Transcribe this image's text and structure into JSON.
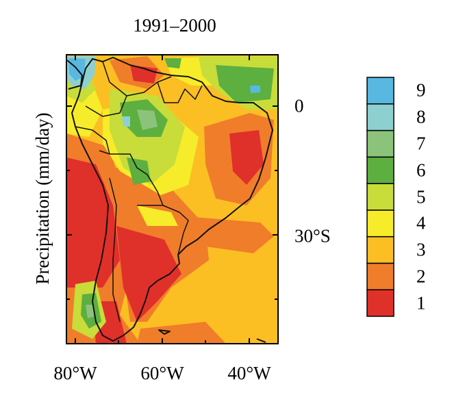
{
  "title": "1991–2000",
  "ylabel": "Precipitation (mm/day)",
  "x_ticks": [
    "80°W",
    "60°W",
    "40°W"
  ],
  "y_ticks": [
    "0",
    "30°S"
  ],
  "colorbar": {
    "levels": [
      "1",
      "2",
      "3",
      "4",
      "5",
      "6",
      "7",
      "8",
      "9"
    ],
    "colors": [
      "#e0302a",
      "#f07d2a",
      "#fbbf24",
      "#f7ec2a",
      "#c8dc3a",
      "#5daf40",
      "#8cc37a",
      "#8ed0cf",
      "#58b8e0"
    ]
  },
  "map": {
    "region": "South America",
    "lon_range": [
      "82°W",
      "34°W"
    ],
    "lat_range": [
      "12°N",
      "55°S"
    ]
  }
}
